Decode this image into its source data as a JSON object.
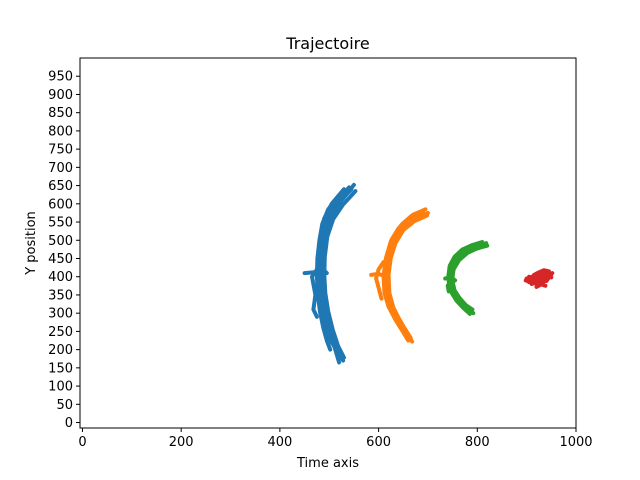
{
  "chart_data": {
    "type": "scatter",
    "title": "Trajectoire",
    "xlabel": "Time axis",
    "ylabel": "Y position",
    "xlim": [
      -5,
      1000
    ],
    "ylim": [
      -15,
      1000
    ],
    "xticks": [
      0,
      200,
      400,
      600,
      800,
      1000
    ],
    "yticks": [
      0,
      50,
      100,
      150,
      200,
      250,
      300,
      350,
      400,
      450,
      500,
      550,
      600,
      650,
      700,
      750,
      800,
      850,
      900,
      950
    ],
    "grid": false,
    "series": [
      {
        "color": "#1f77b4",
        "strands": [
          [
            [
              530,
              640
            ],
            [
              505,
              600
            ],
            [
              490,
              560
            ],
            [
              482,
              510
            ],
            [
              478,
              460
            ],
            [
              477,
              410
            ],
            [
              479,
              360
            ],
            [
              484,
              310
            ],
            [
              493,
              260
            ],
            [
              505,
              220
            ],
            [
              522,
              182
            ]
          ],
          [
            [
              550,
              652
            ],
            [
              525,
              610
            ],
            [
              505,
              565
            ],
            [
              493,
              515
            ],
            [
              488,
              460
            ],
            [
              487,
              410
            ],
            [
              490,
              350
            ],
            [
              497,
              300
            ],
            [
              505,
              250
            ],
            [
              515,
              210
            ],
            [
              528,
              170
            ]
          ],
          [
            [
              545,
              640
            ],
            [
              518,
              602
            ],
            [
              500,
              560
            ],
            [
              490,
              510
            ],
            [
              485,
              460
            ],
            [
              484,
              410
            ],
            [
              486,
              360
            ],
            [
              492,
              300
            ],
            [
              500,
              250
            ],
            [
              513,
              205
            ],
            [
              525,
              175
            ]
          ],
          [
            [
              540,
              645
            ],
            [
              515,
              605
            ],
            [
              495,
              560
            ],
            [
              487,
              510
            ],
            [
              483,
              455
            ],
            [
              482,
              405
            ],
            [
              485,
              355
            ],
            [
              490,
              300
            ],
            [
              498,
              255
            ],
            [
              510,
              210
            ],
            [
              520,
              165
            ]
          ],
          [
            [
              535,
              630
            ],
            [
              510,
              590
            ],
            [
              493,
              550
            ],
            [
              485,
              500
            ],
            [
              481,
              450
            ],
            [
              480,
              400
            ],
            [
              482,
              350
            ],
            [
              488,
              300
            ],
            [
              496,
              260
            ],
            [
              505,
              225
            ],
            [
              518,
              190
            ]
          ],
          [
            [
              520,
              620
            ],
            [
              498,
              585
            ],
            [
              486,
              545
            ],
            [
              480,
              500
            ],
            [
              476,
              450
            ],
            [
              475,
              400
            ],
            [
              477,
              350
            ],
            [
              481,
              305
            ],
            [
              488,
              260
            ],
            [
              495,
              225
            ],
            [
              502,
              200
            ]
          ],
          [
            [
              553,
              635
            ],
            [
              528,
              598
            ],
            [
              508,
              558
            ],
            [
              496,
              510
            ],
            [
              491,
              455
            ],
            [
              490,
              405
            ],
            [
              492,
              355
            ],
            [
              498,
              305
            ],
            [
              507,
              255
            ],
            [
              518,
              210
            ],
            [
              530,
              178
            ]
          ],
          [
            [
              495,
              410
            ],
            [
              480,
              430
            ],
            [
              465,
              400
            ],
            [
              472,
              350
            ],
            [
              468,
              310
            ],
            [
              475,
              290
            ]
          ],
          [
            [
              450,
              410
            ],
            [
              470,
              412
            ],
            [
              485,
              405
            ],
            [
              490,
              395
            ]
          ]
        ]
      },
      {
        "color": "#ff7f0e",
        "strands": [
          [
            [
              690,
              580
            ],
            [
              665,
              565
            ],
            [
              645,
              540
            ],
            [
              628,
              505
            ],
            [
              618,
              460
            ],
            [
              612,
              410
            ],
            [
              614,
              360
            ],
            [
              622,
              320
            ],
            [
              636,
              285
            ],
            [
              650,
              255
            ],
            [
              662,
              228
            ]
          ],
          [
            [
              700,
              575
            ],
            [
              675,
              560
            ],
            [
              652,
              535
            ],
            [
              635,
              500
            ],
            [
              625,
              455
            ],
            [
              620,
              405
            ],
            [
              622,
              355
            ],
            [
              630,
              315
            ],
            [
              643,
              280
            ],
            [
              655,
              250
            ],
            [
              668,
              222
            ]
          ],
          [
            [
              695,
              585
            ],
            [
              670,
              570
            ],
            [
              648,
              545
            ],
            [
              632,
              510
            ],
            [
              622,
              462
            ],
            [
              616,
              412
            ],
            [
              618,
              362
            ],
            [
              626,
              322
            ],
            [
              640,
              288
            ],
            [
              653,
              258
            ],
            [
              665,
              232
            ]
          ],
          [
            [
              685,
              572
            ],
            [
              660,
              558
            ],
            [
              640,
              532
            ],
            [
              625,
              498
            ],
            [
              615,
              452
            ],
            [
              610,
              402
            ],
            [
              612,
              355
            ],
            [
              620,
              318
            ],
            [
              634,
              282
            ],
            [
              648,
              252
            ],
            [
              660,
              225
            ]
          ],
          [
            [
              698,
              568
            ],
            [
              672,
              552
            ],
            [
              650,
              528
            ],
            [
              634,
              492
            ],
            [
              624,
              448
            ],
            [
              619,
              400
            ],
            [
              621,
              352
            ],
            [
              628,
              312
            ],
            [
              640,
              276
            ],
            [
              652,
              246
            ],
            [
              664,
              226
            ]
          ],
          [
            [
              610,
              440
            ],
            [
              600,
              420
            ],
            [
              595,
              395
            ],
            [
              600,
              370
            ],
            [
              606,
              340
            ]
          ],
          [
            [
              585,
              405
            ],
            [
              600,
              408
            ],
            [
              615,
              400
            ]
          ]
        ]
      },
      {
        "color": "#2ca02c",
        "strands": [
          [
            [
              815,
              490
            ],
            [
              795,
              482
            ],
            [
              775,
              470
            ],
            [
              758,
              450
            ],
            [
              748,
              425
            ],
            [
              745,
              395
            ],
            [
              750,
              365
            ],
            [
              762,
              340
            ],
            [
              775,
              320
            ],
            [
              788,
              305
            ]
          ],
          [
            [
              820,
              485
            ],
            [
              800,
              478
            ],
            [
              780,
              465
            ],
            [
              763,
              445
            ],
            [
              752,
              420
            ],
            [
              749,
              392
            ],
            [
              754,
              362
            ],
            [
              766,
              336
            ],
            [
              780,
              316
            ],
            [
              792,
              300
            ]
          ],
          [
            [
              810,
              495
            ],
            [
              790,
              487
            ],
            [
              770,
              475
            ],
            [
              754,
              455
            ],
            [
              744,
              430
            ],
            [
              741,
              398
            ],
            [
              746,
              368
            ],
            [
              758,
              344
            ],
            [
              771,
              324
            ],
            [
              784,
              308
            ]
          ],
          [
            [
              805,
              480
            ],
            [
              786,
              472
            ],
            [
              767,
              460
            ],
            [
              752,
              440
            ],
            [
              744,
              415
            ],
            [
              742,
              388
            ],
            [
              747,
              358
            ],
            [
              758,
              334
            ],
            [
              772,
              314
            ],
            [
              785,
              298
            ]
          ],
          [
            [
              818,
              492
            ],
            [
              798,
              485
            ],
            [
              778,
              472
            ],
            [
              760,
              452
            ],
            [
              750,
              428
            ],
            [
              747,
              398
            ],
            [
              751,
              368
            ],
            [
              764,
              342
            ],
            [
              777,
              322
            ],
            [
              790,
              310
            ]
          ],
          [
            [
              735,
              395
            ],
            [
              748,
              398
            ],
            [
              755,
              390
            ]
          ],
          [
            [
              742,
              360
            ],
            [
              740,
              375
            ],
            [
              744,
              385
            ]
          ]
        ]
      },
      {
        "color": "#d62728",
        "strands": [
          [
            [
              900,
              395
            ],
            [
              912,
              400
            ],
            [
              925,
              405
            ],
            [
              938,
              410
            ],
            [
              948,
              405
            ]
          ],
          [
            [
              905,
              385
            ],
            [
              918,
              392
            ],
            [
              930,
              398
            ],
            [
              942,
              402
            ],
            [
              950,
              398
            ]
          ],
          [
            [
              910,
              380
            ],
            [
              922,
              385
            ],
            [
              932,
              390
            ],
            [
              940,
              395
            ]
          ],
          [
            [
              898,
              390
            ],
            [
              910,
              385
            ],
            [
              922,
              380
            ],
            [
              932,
              378
            ],
            [
              938,
              375
            ]
          ],
          [
            [
              915,
              405
            ],
            [
              925,
              412
            ],
            [
              935,
              418
            ],
            [
              945,
              415
            ]
          ],
          [
            [
              920,
              372
            ],
            [
              928,
              378
            ],
            [
              934,
              385
            ],
            [
              930,
              395
            ]
          ],
          [
            [
              905,
              400
            ],
            [
              915,
              395
            ],
            [
              925,
              392
            ],
            [
              940,
              388
            ],
            [
              952,
              410
            ]
          ]
        ]
      }
    ]
  }
}
